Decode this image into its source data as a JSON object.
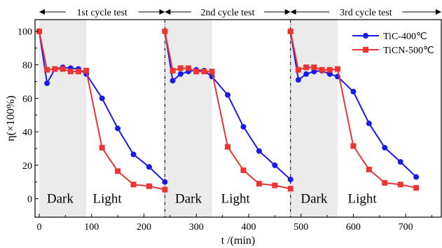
{
  "chart_data": {
    "type": "line",
    "xlabel": "t /(min)",
    "ylabel": "η(×100%)",
    "xlim": [
      -8,
      768
    ],
    "ylim": [
      -11,
      107
    ],
    "xticks": [
      0,
      100,
      200,
      300,
      400,
      500,
      600,
      700
    ],
    "yticks": [
      0,
      20,
      40,
      60,
      80,
      100
    ],
    "grid": false,
    "legend_position": "top-right",
    "cycle_boundaries": [
      0,
      240,
      480,
      768
    ],
    "cycle_labels": [
      "1st cycle test",
      "2nd cycle test",
      "3rd cycle test"
    ],
    "dark_regions": [
      [
        0,
        90
      ],
      [
        240,
        330
      ],
      [
        480,
        570
      ]
    ],
    "region_labels": [
      {
        "text": "Dark",
        "x": 40,
        "y": 0
      },
      {
        "text": "Light",
        "x": 130,
        "y": 0
      },
      {
        "text": "Dark",
        "x": 285,
        "y": 0
      },
      {
        "text": "Light",
        "x": 375,
        "y": 0
      },
      {
        "text": "Dark",
        "x": 525,
        "y": 0
      },
      {
        "text": "Light",
        "x": 617,
        "y": 0
      }
    ],
    "series": [
      {
        "name": "TiC-400℃",
        "color": "#1a1ae6",
        "marker": "circle",
        "segments": [
          {
            "x": [
              0,
              15,
              30,
              45,
              60,
              75,
              90,
              120,
              150,
              180,
              210,
              240
            ],
            "y": [
              100,
              69,
              77.5,
              78.5,
              78,
              77.5,
              74.5,
              60,
              42,
              26.5,
              19,
              10
            ]
          },
          {
            "x": [
              240,
              255,
              270,
              285,
              300,
              315,
              330,
              360,
              390,
              420,
              450,
              480
            ],
            "y": [
              100,
              70.5,
              74.5,
              76,
              77,
              76.5,
              73,
              62,
              43,
              28.5,
              20,
              11.5
            ]
          },
          {
            "x": [
              480,
              495,
              510,
              525,
              540,
              555,
              570,
              600,
              630,
              660,
              690,
              720
            ],
            "y": [
              100,
              71,
              74.5,
              76,
              76.5,
              74.5,
              73,
              64,
              45,
              30.5,
              22,
              13
            ]
          }
        ]
      },
      {
        "name": "TiCN-500℃",
        "color": "#ee3333",
        "marker": "square",
        "segments": [
          {
            "x": [
              0,
              15,
              30,
              45,
              60,
              75,
              90,
              120,
              150,
              180,
              210,
              240
            ],
            "y": [
              100,
              77,
              77.5,
              77.5,
              76,
              76,
              76.5,
              30.5,
              16.5,
              8.5,
              7.5,
              5.5
            ]
          },
          {
            "x": [
              240,
              255,
              270,
              285,
              300,
              315,
              330,
              360,
              390,
              420,
              450,
              480
            ],
            "y": [
              100,
              76.5,
              78,
              78,
              76,
              76,
              76,
              31,
              17,
              9,
              8,
              6
            ]
          },
          {
            "x": [
              480,
              495,
              510,
              525,
              540,
              555,
              570,
              600,
              630,
              660,
              690,
              720
            ],
            "y": [
              100,
              77,
              78.5,
              78.5,
              77,
              77,
              77.5,
              31.5,
              17.5,
              9.5,
              8.5,
              6.5
            ]
          }
        ]
      }
    ]
  }
}
